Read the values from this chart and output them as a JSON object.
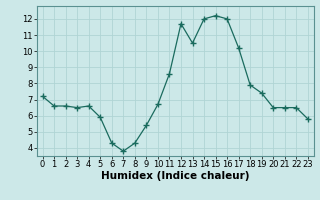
{
  "x": [
    0,
    1,
    2,
    3,
    4,
    5,
    6,
    7,
    8,
    9,
    10,
    11,
    12,
    13,
    14,
    15,
    16,
    17,
    18,
    19,
    20,
    21,
    22,
    23
  ],
  "y": [
    7.2,
    6.6,
    6.6,
    6.5,
    6.6,
    5.9,
    4.3,
    3.8,
    4.3,
    5.4,
    6.7,
    8.6,
    11.7,
    10.5,
    12.0,
    12.2,
    12.0,
    10.2,
    7.9,
    7.4,
    6.5,
    6.5,
    6.5,
    5.8
  ],
  "xlabel": "Humidex (Indice chaleur)",
  "ylim": [
    3.5,
    12.8
  ],
  "xlim": [
    -0.5,
    23.5
  ],
  "yticks": [
    4,
    5,
    6,
    7,
    8,
    9,
    10,
    11,
    12
  ],
  "xticks": [
    0,
    1,
    2,
    3,
    4,
    5,
    6,
    7,
    8,
    9,
    10,
    11,
    12,
    13,
    14,
    15,
    16,
    17,
    18,
    19,
    20,
    21,
    22,
    23
  ],
  "line_color": "#1a6b5e",
  "marker_color": "#1a6b5e",
  "bg_color": "#cce8e8",
  "grid_color": "#b0d4d4",
  "axis_bg": "#cce8e8",
  "tick_label_fontsize": 6.0,
  "xlabel_fontsize": 7.5
}
